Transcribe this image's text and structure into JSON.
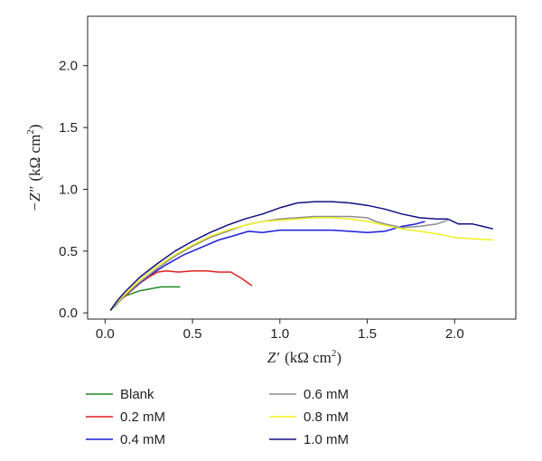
{
  "chart_data": {
    "type": "line",
    "title": "",
    "xlabel": {
      "main": "Z′",
      "unit_prefix": "(kΩ cm",
      "unit_sup": "2",
      "unit_suffix": ")"
    },
    "ylabel": {
      "main": "−Z″",
      "unit_prefix": "(kΩ cm",
      "unit_sup": "2",
      "unit_suffix": ")"
    },
    "xlim": [
      -0.1,
      2.35
    ],
    "ylim": [
      -0.05,
      2.4
    ],
    "xticks": [
      "0.0",
      "0.5",
      "1.0",
      "1.5",
      "2.0"
    ],
    "yticks": [
      "0.0",
      "0.5",
      "1.0",
      "1.5",
      "2.0"
    ],
    "grid": false,
    "legend_position": "bottom",
    "series": [
      {
        "name": "Blank",
        "color": "#1f8a1f",
        "x": [
          0.03,
          0.06,
          0.09,
          0.12,
          0.16,
          0.2,
          0.24,
          0.28,
          0.32,
          0.37,
          0.43
        ],
        "y": [
          0.02,
          0.06,
          0.11,
          0.14,
          0.16,
          0.18,
          0.19,
          0.2,
          0.21,
          0.21,
          0.21
        ]
      },
      {
        "name": "0.2 mM",
        "color": "#e02020",
        "x": [
          0.03,
          0.06,
          0.1,
          0.15,
          0.2,
          0.25,
          0.3,
          0.35,
          0.42,
          0.5,
          0.58,
          0.65,
          0.72,
          0.78,
          0.84
        ],
        "y": [
          0.02,
          0.07,
          0.12,
          0.18,
          0.24,
          0.29,
          0.33,
          0.34,
          0.33,
          0.34,
          0.34,
          0.33,
          0.33,
          0.28,
          0.22
        ]
      },
      {
        "name": "0.4 mM",
        "color": "#1c1cd8",
        "x": [
          0.03,
          0.07,
          0.12,
          0.18,
          0.25,
          0.35,
          0.45,
          0.55,
          0.65,
          0.75,
          0.82,
          0.9,
          1.0,
          1.1,
          1.2,
          1.3,
          1.4,
          1.5,
          1.6,
          1.7,
          1.78,
          1.83
        ],
        "y": [
          0.02,
          0.08,
          0.15,
          0.22,
          0.3,
          0.39,
          0.47,
          0.53,
          0.59,
          0.63,
          0.66,
          0.65,
          0.67,
          0.67,
          0.67,
          0.67,
          0.66,
          0.65,
          0.66,
          0.7,
          0.72,
          0.74
        ]
      },
      {
        "name": "0.6 mM",
        "color": "#8c8c8c",
        "x": [
          0.03,
          0.07,
          0.12,
          0.2,
          0.3,
          0.4,
          0.5,
          0.6,
          0.7,
          0.8,
          0.9,
          1.0,
          1.1,
          1.2,
          1.3,
          1.4,
          1.5,
          1.55,
          1.6,
          1.7,
          1.8,
          1.9,
          1.96
        ],
        "y": [
          0.02,
          0.08,
          0.15,
          0.25,
          0.36,
          0.46,
          0.54,
          0.61,
          0.66,
          0.71,
          0.74,
          0.76,
          0.77,
          0.78,
          0.78,
          0.78,
          0.77,
          0.74,
          0.72,
          0.69,
          0.7,
          0.72,
          0.75
        ]
      },
      {
        "name": "0.8 mM",
        "color": "#f0f020",
        "x": [
          0.03,
          0.07,
          0.12,
          0.2,
          0.3,
          0.4,
          0.5,
          0.6,
          0.7,
          0.8,
          0.9,
          1.0,
          1.1,
          1.2,
          1.3,
          1.4,
          1.5,
          1.6,
          1.7,
          1.8,
          1.9,
          2.0,
          2.1,
          2.22
        ],
        "y": [
          0.02,
          0.09,
          0.16,
          0.27,
          0.38,
          0.47,
          0.55,
          0.62,
          0.67,
          0.71,
          0.74,
          0.75,
          0.76,
          0.77,
          0.77,
          0.76,
          0.74,
          0.71,
          0.68,
          0.66,
          0.64,
          0.61,
          0.6,
          0.59
        ]
      },
      {
        "name": "1.0 mM",
        "color": "#101080",
        "x": [
          0.03,
          0.07,
          0.12,
          0.2,
          0.3,
          0.4,
          0.5,
          0.6,
          0.7,
          0.8,
          0.9,
          1.0,
          1.1,
          1.2,
          1.3,
          1.4,
          1.5,
          1.6,
          1.7,
          1.8,
          1.9,
          1.96,
          2.02,
          2.1,
          2.16,
          2.22
        ],
        "y": [
          0.02,
          0.1,
          0.18,
          0.29,
          0.4,
          0.5,
          0.58,
          0.65,
          0.71,
          0.76,
          0.8,
          0.85,
          0.89,
          0.9,
          0.9,
          0.89,
          0.87,
          0.84,
          0.8,
          0.77,
          0.76,
          0.76,
          0.72,
          0.72,
          0.7,
          0.68
        ]
      }
    ]
  }
}
